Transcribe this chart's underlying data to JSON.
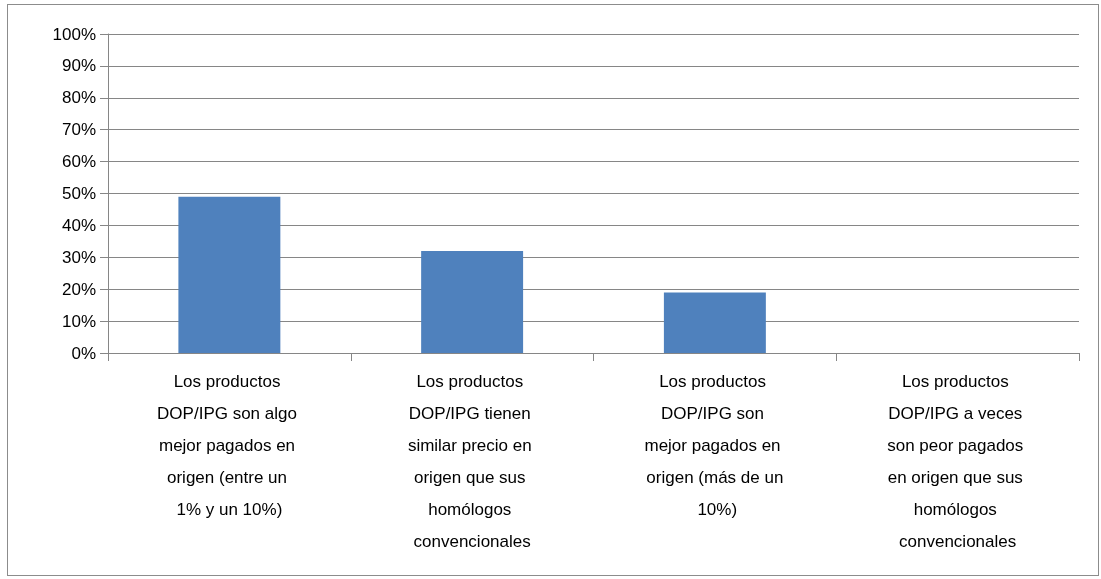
{
  "chart_data": {
    "type": "bar",
    "categories": [
      "Los productos DOP/IPG son algo mejor pagados en origen (entre un 1% y un 10%)",
      "Los productos DOP/IPG tienen similar precio en origen que sus homólogos convencionales",
      "Los productos DOP/IPG son mejor pagados en origen (más de un 10%)",
      "Los productos DOP/IPG a veces son peor pagados en origen que sus homólogos convencionales"
    ],
    "values": [
      49,
      32,
      19,
      0
    ],
    "color": "#4f81bd",
    "ylim": [
      0,
      100
    ],
    "yticks": [
      {
        "value": 0,
        "label": "0%"
      },
      {
        "value": 10,
        "label": "10%"
      },
      {
        "value": 20,
        "label": "20%"
      },
      {
        "value": 30,
        "label": "30%"
      },
      {
        "value": 40,
        "label": "40%"
      },
      {
        "value": 50,
        "label": "50%"
      },
      {
        "value": 60,
        "label": "60%"
      },
      {
        "value": 70,
        "label": "70%"
      },
      {
        "value": 80,
        "label": "80%"
      },
      {
        "value": 90,
        "label": "90%"
      },
      {
        "value": 100,
        "label": "100%"
      }
    ],
    "grid": "y"
  }
}
